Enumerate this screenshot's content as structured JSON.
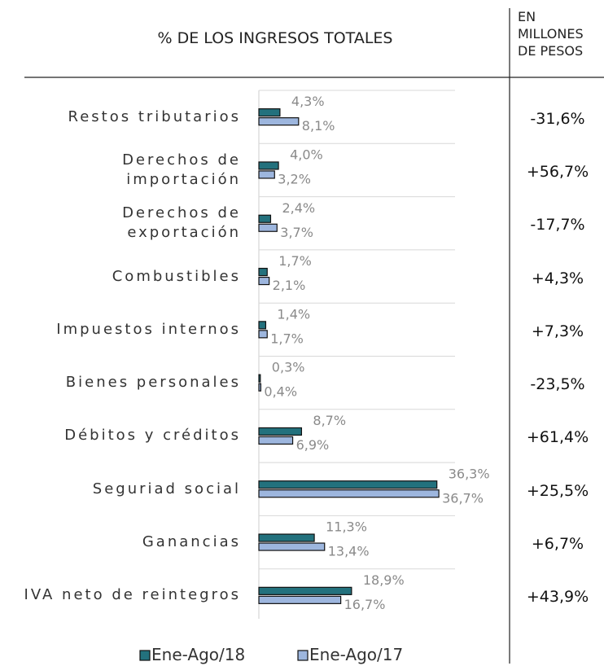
{
  "chart_data": {
    "type": "bar",
    "orientation": "horizontal",
    "title": "% DE LOS INGRESOS TOTALES",
    "categories": [
      "Restos tributarios",
      "Derechos de\nimportación",
      "Derechos de\nexportación",
      "Combustibles",
      "Impuestos internos",
      "Bienes personales",
      "Débitos y créditos",
      "Seguriad social",
      "Ganancias",
      "IVA neto de reintegros"
    ],
    "series": [
      {
        "name": "Ene-Ago/18",
        "color": "#23717d",
        "values": [
          4.3,
          4.0,
          2.4,
          1.7,
          1.4,
          0.3,
          8.7,
          36.3,
          11.3,
          18.9
        ],
        "value_labels": [
          "4,3%",
          "4,0%",
          "2,4%",
          "1,7%",
          "1,4%",
          "0,3%",
          "8,7%",
          "36,3%",
          "11,3%",
          "18,9%"
        ]
      },
      {
        "name": "Ene-Ago/17",
        "color": "#9db6de",
        "values": [
          8.1,
          3.2,
          3.7,
          2.1,
          1.7,
          0.4,
          6.9,
          36.7,
          13.4,
          16.7
        ],
        "value_labels": [
          "8,1%",
          "3,2%",
          "3,7%",
          "2,1%",
          "1,7%",
          "0,4%",
          "6,9%",
          "36,7%",
          "13,4%",
          "16,7%"
        ]
      }
    ],
    "xlim": [
      0,
      40
    ],
    "variation": {
      "name": "EN\nMILLONES\nDE PESOS",
      "values": [
        -31.6,
        56.7,
        -17.7,
        4.3,
        7.3,
        -23.5,
        61.4,
        25.5,
        6.7,
        43.9
      ],
      "value_labels": [
        "-31,6%",
        "+56,7%",
        "-17,7%",
        "+4,3%",
        "+7,3%",
        "-23,5%",
        "+61,4%",
        "+25,5%",
        "+6,7%",
        "+43,9%"
      ]
    }
  }
}
